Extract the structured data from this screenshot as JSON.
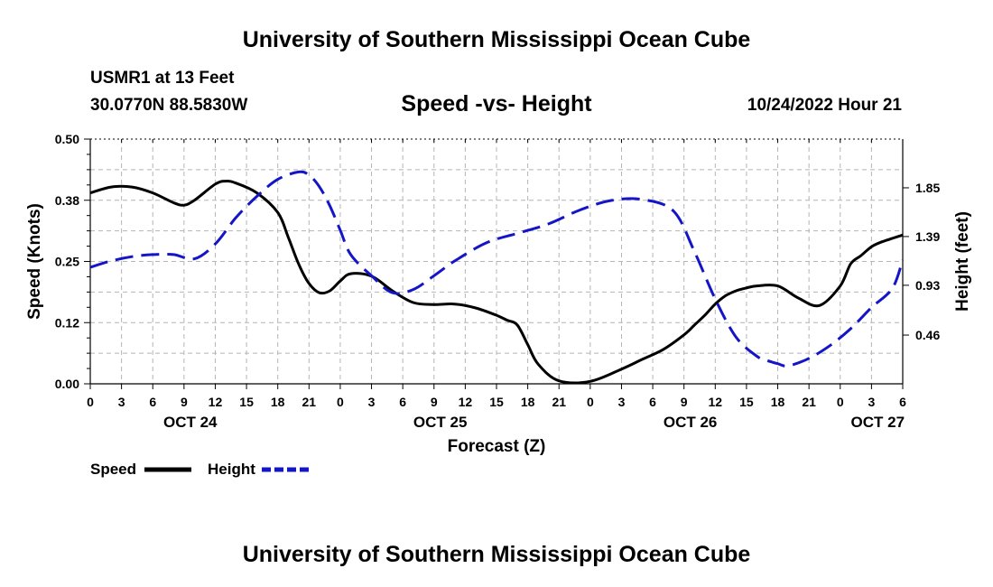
{
  "header": {
    "title": "University of Southern Mississippi Ocean Cube",
    "station": "USMR1 at 13 Feet",
    "coordinates": "30.0770N  88.5830W",
    "subtitle": "Speed -vs- Height",
    "datetime": "10/24/2022 Hour 21"
  },
  "footer": {
    "title": "University of Southern Mississippi Ocean Cube"
  },
  "chart_data": {
    "type": "line",
    "title": "Speed -vs- Height",
    "xlabel": "Forecast (Z)",
    "ylabel_left": "Speed (Knots)",
    "ylabel_right": "Height (feet)",
    "xlim": [
      0,
      78
    ],
    "ylim_left": [
      0,
      0.5
    ],
    "ylim_right": [
      0,
      2.31
    ],
    "x_tick_step_hours": 3,
    "x_tick_labels": [
      "0",
      "3",
      "6",
      "9",
      "12",
      "15",
      "18",
      "21",
      "0",
      "3",
      "6",
      "9",
      "12",
      "15",
      "18",
      "21",
      "0",
      "3",
      "6",
      "9",
      "12",
      "15",
      "18",
      "21",
      "0",
      "3",
      "6"
    ],
    "left_tick_values": [
      0,
      0.125,
      0.25,
      0.375,
      0.5
    ],
    "left_tick_labels": [
      "0.00",
      "0.12",
      "0.25",
      "0.38",
      "0.50"
    ],
    "right_tick_values": [
      0.46,
      0.93,
      1.39,
      1.85
    ],
    "right_tick_labels": [
      "0.46",
      "0.93",
      "1.39",
      "1.85"
    ],
    "date_labels": [
      {
        "x": 9.6,
        "label": "OCT 24"
      },
      {
        "x": 33.6,
        "label": "OCT 25"
      },
      {
        "x": 57.6,
        "label": "OCT 26"
      },
      {
        "x": 75.6,
        "label": "OCT 27"
      }
    ],
    "grid": true,
    "legend": [
      {
        "name": "Speed",
        "color": "#000000",
        "dash": "solid"
      },
      {
        "name": "Height",
        "color": "#1515c8",
        "dash": "dashed"
      }
    ],
    "series": [
      {
        "name": "Speed",
        "axis": "left",
        "color": "#000000",
        "dash": "solid",
        "x": [
          0,
          2,
          4,
          6,
          8,
          9,
          10,
          12,
          13,
          14,
          16,
          18,
          19,
          20,
          21,
          22,
          23,
          24,
          25,
          27,
          29,
          31,
          33,
          35,
          37,
          39,
          40,
          41,
          42,
          43,
          45,
          48,
          51,
          53,
          55,
          57,
          58,
          59,
          60,
          61,
          62,
          63,
          64,
          66,
          68,
          70,
          72,
          73,
          74,
          75,
          76,
          78
        ],
        "y": [
          0.39,
          0.402,
          0.402,
          0.39,
          0.37,
          0.365,
          0.375,
          0.408,
          0.414,
          0.41,
          0.39,
          0.35,
          0.3,
          0.245,
          0.205,
          0.186,
          0.19,
          0.21,
          0.225,
          0.22,
          0.19,
          0.166,
          0.162,
          0.163,
          0.155,
          0.14,
          0.13,
          0.12,
          0.08,
          0.04,
          0.006,
          0.005,
          0.03,
          0.05,
          0.07,
          0.1,
          0.12,
          0.14,
          0.163,
          0.18,
          0.19,
          0.196,
          0.2,
          0.2,
          0.175,
          0.16,
          0.2,
          0.245,
          0.262,
          0.28,
          0.29,
          0.304
        ]
      },
      {
        "name": "Height",
        "axis": "right",
        "color": "#1515c8",
        "dash": "dashed",
        "x": [
          0,
          2,
          4,
          6,
          8,
          10,
          12,
          14,
          16,
          18,
          20,
          21,
          22,
          23,
          24,
          25,
          27,
          29,
          31,
          33,
          35,
          38,
          41,
          44,
          47,
          50,
          53,
          56,
          58,
          60,
          62,
          64,
          65,
          66,
          67,
          69,
          71,
          73,
          75,
          77,
          78
        ],
        "y": [
          1.1,
          1.16,
          1.2,
          1.22,
          1.22,
          1.18,
          1.32,
          1.57,
          1.77,
          1.93,
          2.0,
          1.97,
          1.86,
          1.68,
          1.45,
          1.22,
          1.02,
          0.86,
          0.89,
          1.02,
          1.16,
          1.33,
          1.42,
          1.51,
          1.64,
          1.73,
          1.74,
          1.63,
          1.25,
          0.8,
          0.44,
          0.26,
          0.22,
          0.19,
          0.17,
          0.24,
          0.36,
          0.52,
          0.72,
          0.9,
          1.17
        ]
      }
    ]
  }
}
